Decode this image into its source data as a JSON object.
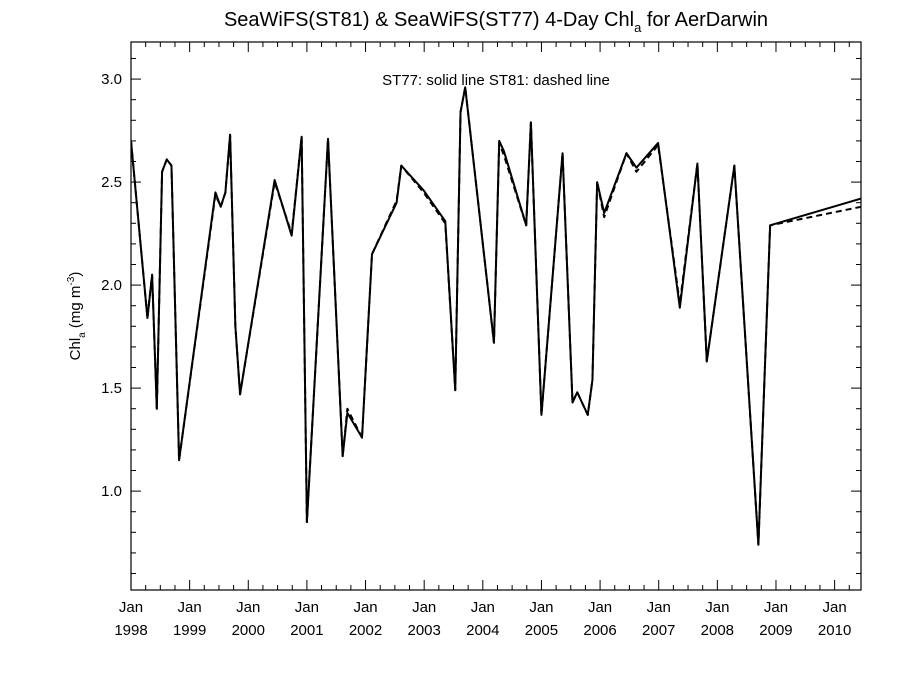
{
  "chart_data": {
    "type": "line",
    "title": {
      "prefix": "SeaWiFS(ST81) & SeaWiFS(ST77) 4-Day Chl",
      "subscript": "a",
      "suffix": " for AerDarwin"
    },
    "ylabel": {
      "base": "Chl",
      "subscript": "a",
      "units": " (mg m",
      "superscript": "-3",
      "close": ")"
    },
    "xlabel": "",
    "annotation": "ST77: solid line   ST81: dashed line",
    "xlim": [
      1998.0,
      2010.45
    ],
    "ylim": [
      0.52,
      3.18
    ],
    "x_ticks": [
      {
        "x": 1998.0,
        "month": "Jan",
        "year": "1998"
      },
      {
        "x": 1999.0,
        "month": "Jan",
        "year": "1999"
      },
      {
        "x": 2000.0,
        "month": "Jan",
        "year": "2000"
      },
      {
        "x": 2001.0,
        "month": "Jan",
        "year": "2001"
      },
      {
        "x": 2002.0,
        "month": "Jan",
        "year": "2002"
      },
      {
        "x": 2003.0,
        "month": "Jan",
        "year": "2003"
      },
      {
        "x": 2004.0,
        "month": "Jan",
        "year": "2004"
      },
      {
        "x": 2005.0,
        "month": "Jan",
        "year": "2005"
      },
      {
        "x": 2006.0,
        "month": "Jan",
        "year": "2006"
      },
      {
        "x": 2007.0,
        "month": "Jan",
        "year": "2007"
      },
      {
        "x": 2008.0,
        "month": "Jan",
        "year": "2008"
      },
      {
        "x": 2009.0,
        "month": "Jan",
        "year": "2009"
      },
      {
        "x": 2010.0,
        "month": "Jan",
        "year": "2010"
      }
    ],
    "y_ticks": [
      {
        "value": 1.0,
        "label": "1.0"
      },
      {
        "value": 1.5,
        "label": "1.5"
      },
      {
        "value": 2.0,
        "label": "2.0"
      },
      {
        "value": 2.5,
        "label": "2.5"
      },
      {
        "value": 3.0,
        "label": "3.0"
      }
    ],
    "series": [
      {
        "key": "st77",
        "style": "solid",
        "points": [
          [
            1998.0,
            2.7
          ],
          [
            1998.28,
            1.84
          ],
          [
            1998.36,
            2.05
          ],
          [
            1998.44,
            1.4
          ],
          [
            1998.53,
            2.55
          ],
          [
            1998.61,
            2.61
          ],
          [
            1998.69,
            2.58
          ],
          [
            1998.82,
            1.15
          ],
          [
            1999.44,
            2.45
          ],
          [
            1999.53,
            2.38
          ],
          [
            1999.61,
            2.45
          ],
          [
            1999.69,
            2.73
          ],
          [
            1999.78,
            1.8
          ],
          [
            1999.86,
            1.47
          ],
          [
            2000.45,
            2.51
          ],
          [
            2000.74,
            2.24
          ],
          [
            2000.91,
            2.72
          ],
          [
            2001.0,
            0.85
          ],
          [
            2001.36,
            2.71
          ],
          [
            2001.61,
            1.17
          ],
          [
            2001.69,
            1.38
          ],
          [
            2001.94,
            1.26
          ],
          [
            2002.11,
            2.15
          ],
          [
            2002.53,
            2.4
          ],
          [
            2002.61,
            2.58
          ],
          [
            2002.99,
            2.46
          ],
          [
            2003.36,
            2.31
          ],
          [
            2003.53,
            1.49
          ],
          [
            2003.62,
            2.84
          ],
          [
            2003.7,
            2.96
          ],
          [
            2004.19,
            1.72
          ],
          [
            2004.28,
            2.7
          ],
          [
            2004.36,
            2.65
          ],
          [
            2004.74,
            2.29
          ],
          [
            2004.82,
            2.79
          ],
          [
            2005.0,
            1.37
          ],
          [
            2005.36,
            2.64
          ],
          [
            2005.53,
            1.43
          ],
          [
            2005.61,
            1.48
          ],
          [
            2005.79,
            1.37
          ],
          [
            2005.87,
            1.54
          ],
          [
            2005.95,
            2.5
          ],
          [
            2006.07,
            2.35
          ],
          [
            2006.45,
            2.64
          ],
          [
            2006.62,
            2.57
          ],
          [
            2006.99,
            2.69
          ],
          [
            2007.36,
            1.89
          ],
          [
            2007.66,
            2.59
          ],
          [
            2007.82,
            1.63
          ],
          [
            2008.29,
            2.58
          ],
          [
            2008.7,
            0.74
          ],
          [
            2008.9,
            2.29
          ],
          [
            2010.45,
            2.42
          ]
        ]
      },
      {
        "key": "st81",
        "style": "dashed",
        "points": [
          [
            1998.0,
            2.7
          ],
          [
            1998.28,
            1.84
          ],
          [
            1998.36,
            2.05
          ],
          [
            1998.44,
            1.4
          ],
          [
            1998.53,
            2.55
          ],
          [
            1998.61,
            2.61
          ],
          [
            1998.69,
            2.58
          ],
          [
            1998.82,
            1.15
          ],
          [
            1999.44,
            2.44
          ],
          [
            1999.53,
            2.38
          ],
          [
            1999.61,
            2.45
          ],
          [
            1999.69,
            2.73
          ],
          [
            1999.78,
            1.8
          ],
          [
            1999.86,
            1.47
          ],
          [
            2000.45,
            2.5
          ],
          [
            2000.74,
            2.25
          ],
          [
            2000.91,
            2.72
          ],
          [
            2001.0,
            0.85
          ],
          [
            2001.36,
            2.71
          ],
          [
            2001.61,
            1.17
          ],
          [
            2001.69,
            1.4
          ],
          [
            2001.94,
            1.26
          ],
          [
            2002.11,
            2.15
          ],
          [
            2002.53,
            2.41
          ],
          [
            2002.61,
            2.58
          ],
          [
            2002.99,
            2.45
          ],
          [
            2003.36,
            2.3
          ],
          [
            2003.53,
            1.49
          ],
          [
            2003.62,
            2.84
          ],
          [
            2003.7,
            2.96
          ],
          [
            2004.19,
            1.72
          ],
          [
            2004.28,
            2.69
          ],
          [
            2004.36,
            2.63
          ],
          [
            2004.74,
            2.29
          ],
          [
            2004.82,
            2.79
          ],
          [
            2005.0,
            1.37
          ],
          [
            2005.36,
            2.64
          ],
          [
            2005.53,
            1.43
          ],
          [
            2005.61,
            1.48
          ],
          [
            2005.79,
            1.37
          ],
          [
            2005.87,
            1.54
          ],
          [
            2005.95,
            2.5
          ],
          [
            2006.07,
            2.33
          ],
          [
            2006.45,
            2.64
          ],
          [
            2006.62,
            2.55
          ],
          [
            2006.99,
            2.68
          ],
          [
            2007.36,
            1.91
          ],
          [
            2007.66,
            2.59
          ],
          [
            2007.82,
            1.63
          ],
          [
            2008.29,
            2.58
          ],
          [
            2008.7,
            0.74
          ],
          [
            2008.9,
            2.29
          ],
          [
            2010.45,
            2.38
          ]
        ]
      }
    ],
    "grid": false,
    "colors": {
      "line": "#000000",
      "background": "#ffffff"
    }
  }
}
